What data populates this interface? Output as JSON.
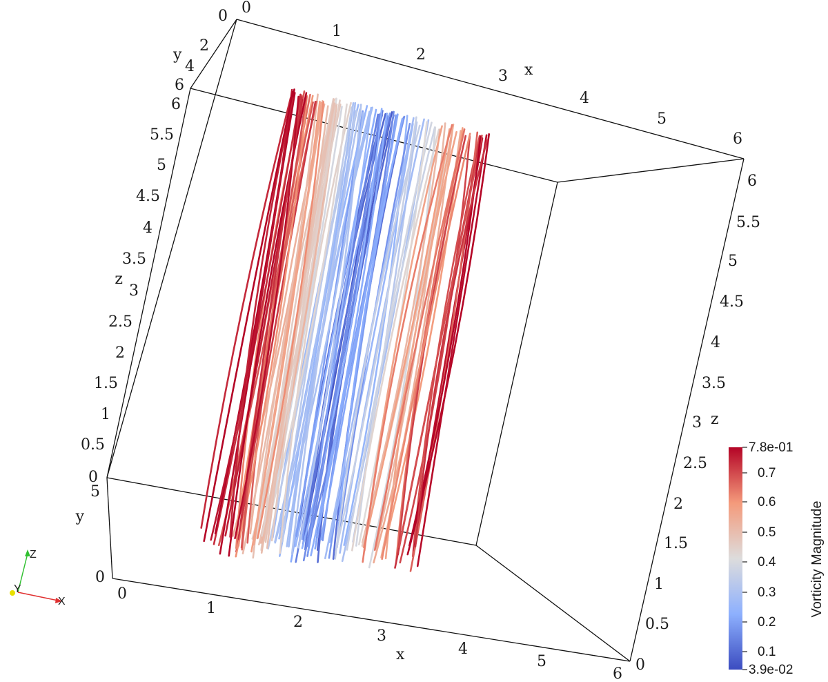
{
  "axes": {
    "x_label": "x",
    "y_label": "y",
    "z_label": "z",
    "top_x_ticks": [
      "0",
      "1",
      "2",
      "3",
      "4",
      "5",
      "6"
    ],
    "top_y_ticks": [
      "0",
      "2",
      "4",
      "6"
    ],
    "left_z_ticks": [
      "6",
      "5.5",
      "5",
      "4.5",
      "4",
      "3.5",
      "3",
      "2.5",
      "2",
      "1.5",
      "1",
      "0.5",
      "0"
    ],
    "left_y_ticks": [
      "5",
      "0"
    ],
    "bottom_x_ticks": [
      "0",
      "1",
      "2",
      "3",
      "4",
      "5",
      "6"
    ],
    "right_z_ticks": [
      "6",
      "5.5",
      "5",
      "4.5",
      "4",
      "3.5",
      "3",
      "2.5",
      "2",
      "1.5",
      "1",
      "0.5",
      "0"
    ]
  },
  "colorbar": {
    "title": "Vorticity Magnitude",
    "max_label": "7.8e-01",
    "min_label": "3.9e-02",
    "tick_labels": [
      "0.7",
      "0.6",
      "0.5",
      "0.4",
      "0.3",
      "0.2",
      "0.1"
    ],
    "range": [
      0.039,
      0.78
    ],
    "colors": {
      "low": "#3b4cc0",
      "mid": "#dddddd",
      "high": "#b40426"
    }
  },
  "orientation_triad": {
    "x": "X",
    "y": "Y",
    "z": "Z"
  },
  "colors": {
    "x_axis": "#e03030",
    "y_axis": "#e8e000",
    "z_axis": "#30c030",
    "frame": "#111111"
  }
}
